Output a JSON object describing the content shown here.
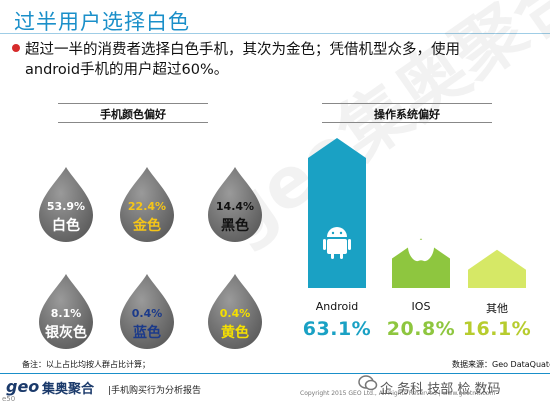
{
  "title": "过半用户选择白色",
  "bullet": {
    "line1": "超过一半的消费者选择白色手机，其次为金色；凭借机型众多，使用",
    "line2": "android手机的用户超过60%。"
  },
  "colors": {
    "accent": "#1a8fc9",
    "drop_gray": "#7a7a7a",
    "android": "#1aa1c4",
    "ios": "#8ec63f",
    "other": "#d6e866"
  },
  "chart_data": [
    {
      "type": "table",
      "title": "手机颜色偏好",
      "categories": [
        "白色",
        "金色",
        "黑色",
        "银灰色",
        "蓝色",
        "黄色"
      ],
      "values": [
        "53.9%",
        "22.4%",
        "14.4%",
        "8.1%",
        "0.4%",
        "0.4%"
      ],
      "label_colors": [
        "#ffffff",
        "#f5c518",
        "#111111",
        "#ffffff",
        "#1b3a8a",
        "#f5e000"
      ]
    },
    {
      "type": "bar",
      "title": "操作系统偏好",
      "categories": [
        "Android",
        "IOS",
        "其他"
      ],
      "values": [
        63.1,
        20.8,
        16.1
      ],
      "value_labels": [
        "63.1%",
        "20.8%",
        "16.1%"
      ],
      "icons": [
        "android-icon",
        "apple-icon",
        ""
      ],
      "bar_colors": [
        "#1aa1c4",
        "#8ec63f",
        "#d6e866"
      ]
    }
  ],
  "footnote": "备注：以上占比均按人群占比计算；",
  "source": "数据来源：Geo DataQuate",
  "footer": {
    "logo_geo": "geo",
    "logo_text": "集奥聚合",
    "slogan": "|手机购买行为分析报告",
    "copyright": "Copyright 2015 GEO Ltd., All Rights Reserved   |   www.geotmt.com",
    "wechat": "企 务科 技部 检 数码"
  },
  "watermark": "geo集奥聚合",
  "fig_id": "e50"
}
